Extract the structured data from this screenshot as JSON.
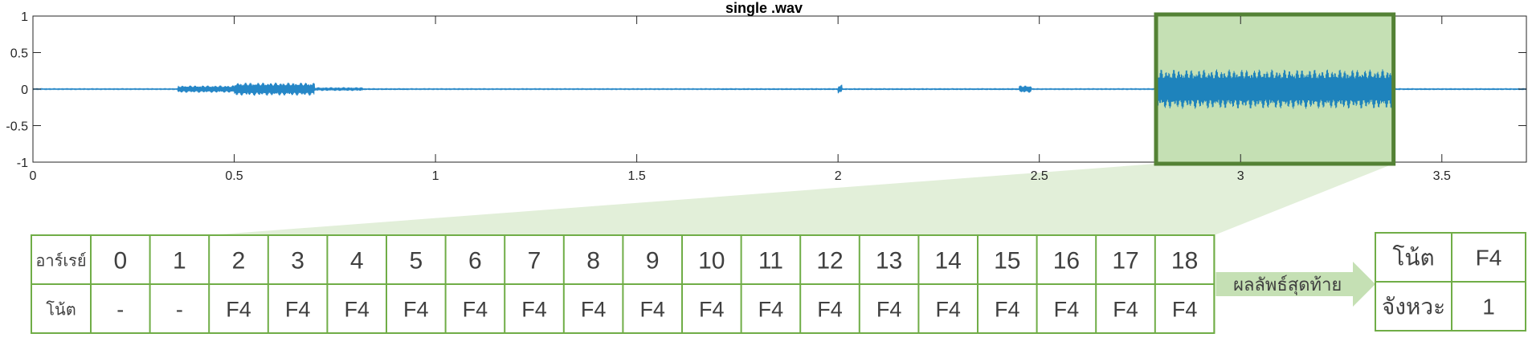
{
  "chart_data": {
    "type": "line",
    "title": "single .wav",
    "xlabel": "",
    "ylabel": "",
    "xlim": [
      0,
      3.71
    ],
    "ylim": [
      -1,
      1
    ],
    "x_ticks": [
      0,
      0.5,
      1,
      1.5,
      2,
      2.5,
      3,
      3.5
    ],
    "x_tick_labels": [
      "0",
      "0.5",
      "1",
      "1.5",
      "2",
      "2.5",
      "3",
      "3.5"
    ],
    "y_ticks": [
      1,
      0.5,
      0,
      -0.5,
      -1
    ],
    "y_tick_labels": [
      "1",
      "0.5",
      "0",
      "-0.5",
      "-1"
    ],
    "grid": false,
    "line_color": "#0072bd",
    "series": [
      {
        "segments": [
          {
            "x_start": 0.0,
            "x_end": 3.71,
            "amplitude": 0.006
          },
          {
            "x_start": 0.36,
            "x_end": 0.5,
            "amplitude": 0.05
          },
          {
            "x_start": 0.5,
            "x_end": 0.7,
            "amplitude": 0.09
          },
          {
            "x_start": 0.7,
            "x_end": 0.82,
            "amplitude": 0.025
          },
          {
            "x_start": 2.0,
            "x_end": 2.01,
            "amplitude": 0.06
          },
          {
            "x_start": 2.45,
            "x_end": 2.48,
            "amplitude": 0.05
          },
          {
            "x_start": 2.79,
            "x_end": 3.38,
            "amplitude": 0.27
          }
        ]
      }
    ],
    "highlight": {
      "x_start": 2.79,
      "x_end": 3.38,
      "y_min": -1,
      "y_max": 1,
      "fill": "#c5e0b4",
      "stroke": "#548235"
    }
  },
  "colors": {
    "table_border": "#70ad47",
    "callout_fill": "#c5e0b4",
    "callout_light": "#e2efd9",
    "arrow_text": "#404040"
  },
  "array_table": {
    "row1_header": "อาร์เรย์",
    "row2_header": "โน้ต",
    "indices": [
      "0",
      "1",
      "2",
      "3",
      "4",
      "5",
      "6",
      "7",
      "8",
      "9",
      "10",
      "11",
      "12",
      "13",
      "14",
      "15",
      "16",
      "17",
      "18"
    ],
    "notes": [
      "-",
      "-",
      "F4",
      "F4",
      "F4",
      "F4",
      "F4",
      "F4",
      "F4",
      "F4",
      "F4",
      "F4",
      "F4",
      "F4",
      "F4",
      "F4",
      "F4",
      "F4",
      "F4"
    ]
  },
  "arrow_label": "ผลลัพธ์สุดท้าย",
  "result_table": {
    "note_header": "โน้ต",
    "note_value": "F4",
    "beat_header": "จังหวะ",
    "beat_value": "1"
  }
}
